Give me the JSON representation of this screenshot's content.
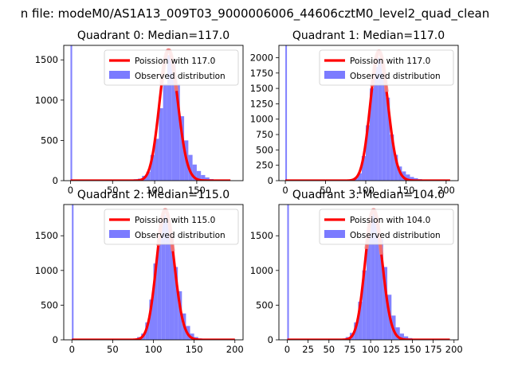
{
  "figure": {
    "suptitle": "n file: modeM0/AS1A13_009T03_9000006006_44606cztM0_level2_quad_clean"
  },
  "colors": {
    "hist": "#7b7bff",
    "poisson": "#ff0000",
    "poisson_peak": "#f08080",
    "axis": "#000000",
    "background": "#ffffff"
  },
  "chart_data": [
    {
      "type": "bar",
      "title": "Quadrant 0: Median=117.0",
      "xlim": [
        -8,
        205
      ],
      "ylim": [
        0,
        1680
      ],
      "xticks": [
        0,
        50,
        100,
        150
      ],
      "yticks": [
        0,
        500,
        1000,
        1500
      ],
      "bin_width": 5,
      "legend": {
        "placement": "top-right",
        "entries": [
          "Poission with 117.0",
          "Observed distribution"
        ]
      },
      "histogram": {
        "name": "Observed distribution",
        "bins": [
          {
            "x0": 0,
            "x1": 2,
            "count": 1680
          },
          {
            "x0": 60,
            "x1": 65,
            "count": 8
          },
          {
            "x0": 65,
            "x1": 70,
            "count": 10
          },
          {
            "x0": 70,
            "x1": 75,
            "count": 8
          },
          {
            "x0": 75,
            "x1": 80,
            "count": 18
          },
          {
            "x0": 80,
            "x1": 85,
            "count": 25
          },
          {
            "x0": 85,
            "x1": 90,
            "count": 60
          },
          {
            "x0": 90,
            "x1": 95,
            "count": 110
          },
          {
            "x0": 95,
            "x1": 100,
            "count": 320
          },
          {
            "x0": 100,
            "x1": 105,
            "count": 520
          },
          {
            "x0": 105,
            "x1": 110,
            "count": 900
          },
          {
            "x0": 110,
            "x1": 115,
            "count": 1200
          },
          {
            "x0": 115,
            "x1": 120,
            "count": 1560
          },
          {
            "x0": 120,
            "x1": 125,
            "count": 1480
          },
          {
            "x0": 125,
            "x1": 130,
            "count": 1200
          },
          {
            "x0": 130,
            "x1": 135,
            "count": 800
          },
          {
            "x0": 135,
            "x1": 140,
            "count": 500
          },
          {
            "x0": 140,
            "x1": 145,
            "count": 320
          },
          {
            "x0": 145,
            "x1": 150,
            "count": 200
          },
          {
            "x0": 150,
            "x1": 155,
            "count": 120
          },
          {
            "x0": 155,
            "x1": 160,
            "count": 70
          },
          {
            "x0": 160,
            "x1": 165,
            "count": 40
          },
          {
            "x0": 165,
            "x1": 170,
            "count": 20
          },
          {
            "x0": 170,
            "x1": 175,
            "count": 10
          },
          {
            "x0": 175,
            "x1": 180,
            "count": 5
          },
          {
            "x0": 180,
            "x1": 185,
            "count": 5
          },
          {
            "x0": 185,
            "x1": 190,
            "count": 5
          }
        ]
      },
      "poisson": {
        "name": "Poission with 117.0",
        "mean": 117.0,
        "peak": 1620,
        "x_range": [
          0,
          190
        ]
      }
    },
    {
      "type": "bar",
      "title": "Quadrant 1: Median=117.0",
      "xlim": [
        -8,
        215
      ],
      "ylim": [
        0,
        2200
      ],
      "xticks": [
        0,
        50,
        100,
        150,
        200
      ],
      "yticks": [
        0,
        250,
        500,
        750,
        1000,
        1250,
        1500,
        1750,
        2000
      ],
      "bin_width": 5,
      "legend": {
        "placement": "top-right",
        "entries": [
          "Poission with 117.0",
          "Observed distribution"
        ]
      },
      "histogram": {
        "name": "Observed distribution",
        "bins": [
          {
            "x0": 0,
            "x1": 2,
            "count": 2200
          },
          {
            "x0": 60,
            "x1": 65,
            "count": 5
          },
          {
            "x0": 65,
            "x1": 70,
            "count": 8
          },
          {
            "x0": 70,
            "x1": 75,
            "count": 8
          },
          {
            "x0": 75,
            "x1": 80,
            "count": 15
          },
          {
            "x0": 80,
            "x1": 85,
            "count": 25
          },
          {
            "x0": 85,
            "x1": 90,
            "count": 50
          },
          {
            "x0": 90,
            "x1": 95,
            "count": 120
          },
          {
            "x0": 95,
            "x1": 100,
            "count": 400
          },
          {
            "x0": 100,
            "x1": 105,
            "count": 900
          },
          {
            "x0": 105,
            "x1": 110,
            "count": 1500
          },
          {
            "x0": 110,
            "x1": 115,
            "count": 1850
          },
          {
            "x0": 115,
            "x1": 120,
            "count": 2000
          },
          {
            "x0": 120,
            "x1": 125,
            "count": 1750
          },
          {
            "x0": 125,
            "x1": 130,
            "count": 1350
          },
          {
            "x0": 130,
            "x1": 135,
            "count": 750
          },
          {
            "x0": 135,
            "x1": 140,
            "count": 420
          },
          {
            "x0": 140,
            "x1": 145,
            "count": 230
          },
          {
            "x0": 145,
            "x1": 150,
            "count": 150
          },
          {
            "x0": 150,
            "x1": 155,
            "count": 100
          },
          {
            "x0": 155,
            "x1": 160,
            "count": 60
          },
          {
            "x0": 160,
            "x1": 165,
            "count": 40
          },
          {
            "x0": 165,
            "x1": 170,
            "count": 25
          },
          {
            "x0": 170,
            "x1": 175,
            "count": 15
          },
          {
            "x0": 175,
            "x1": 180,
            "count": 10
          },
          {
            "x0": 180,
            "x1": 185,
            "count": 5
          },
          {
            "x0": 185,
            "x1": 190,
            "count": 5
          }
        ]
      },
      "poisson": {
        "name": "Poission with 117.0",
        "mean": 117.0,
        "peak": 2100,
        "x_range": [
          0,
          205
        ]
      }
    },
    {
      "type": "bar",
      "title": "Quadrant 2: Median=115.0",
      "xlim": [
        -10,
        210
      ],
      "ylim": [
        0,
        1950
      ],
      "xticks": [
        0,
        50,
        100,
        150,
        200
      ],
      "yticks": [
        0,
        500,
        1000,
        1500
      ],
      "bin_width": 5,
      "legend": {
        "placement": "top-right",
        "entries": [
          "Poission with 115.0",
          "Observed distribution"
        ]
      },
      "histogram": {
        "name": "Observed distribution",
        "bins": [
          {
            "x0": 0,
            "x1": 2,
            "count": 1950
          },
          {
            "x0": 65,
            "x1": 70,
            "count": 5
          },
          {
            "x0": 70,
            "x1": 75,
            "count": 8
          },
          {
            "x0": 75,
            "x1": 80,
            "count": 15
          },
          {
            "x0": 80,
            "x1": 85,
            "count": 40
          },
          {
            "x0": 85,
            "x1": 90,
            "count": 90
          },
          {
            "x0": 90,
            "x1": 95,
            "count": 250
          },
          {
            "x0": 95,
            "x1": 100,
            "count": 580
          },
          {
            "x0": 100,
            "x1": 105,
            "count": 1100
          },
          {
            "x0": 105,
            "x1": 110,
            "count": 1500
          },
          {
            "x0": 110,
            "x1": 115,
            "count": 1800
          },
          {
            "x0": 115,
            "x1": 120,
            "count": 1750
          },
          {
            "x0": 120,
            "x1": 125,
            "count": 1500
          },
          {
            "x0": 125,
            "x1": 130,
            "count": 1050
          },
          {
            "x0": 130,
            "x1": 135,
            "count": 700
          },
          {
            "x0": 135,
            "x1": 140,
            "count": 380
          },
          {
            "x0": 140,
            "x1": 145,
            "count": 200
          },
          {
            "x0": 145,
            "x1": 150,
            "count": 90
          },
          {
            "x0": 150,
            "x1": 155,
            "count": 40
          },
          {
            "x0": 155,
            "x1": 160,
            "count": 20
          },
          {
            "x0": 160,
            "x1": 165,
            "count": 8
          },
          {
            "x0": 165,
            "x1": 170,
            "count": 5
          }
        ]
      },
      "poisson": {
        "name": "Poission with 115.0",
        "mean": 115.0,
        "peak": 1870,
        "x_range": [
          0,
          200
        ]
      }
    },
    {
      "type": "bar",
      "title": "Quadrant 3: Median=104.0",
      "xlim": [
        -10,
        205
      ],
      "ylim": [
        0,
        1950
      ],
      "xticks": [
        0,
        25,
        50,
        75,
        100,
        125,
        150,
        175,
        200
      ],
      "yticks": [
        0,
        500,
        1000,
        1500
      ],
      "bin_width": 5,
      "legend": {
        "placement": "top-right",
        "entries": [
          "Poission with 104.0",
          "Observed distribution"
        ]
      },
      "histogram": {
        "name": "Observed distribution",
        "bins": [
          {
            "x0": 0,
            "x1": 2,
            "count": 1950
          },
          {
            "x0": 55,
            "x1": 60,
            "count": 5
          },
          {
            "x0": 60,
            "x1": 65,
            "count": 8
          },
          {
            "x0": 65,
            "x1": 70,
            "count": 15
          },
          {
            "x0": 70,
            "x1": 75,
            "count": 40
          },
          {
            "x0": 75,
            "x1": 80,
            "count": 100
          },
          {
            "x0": 80,
            "x1": 85,
            "count": 250
          },
          {
            "x0": 85,
            "x1": 90,
            "count": 550
          },
          {
            "x0": 90,
            "x1": 95,
            "count": 1000
          },
          {
            "x0": 95,
            "x1": 100,
            "count": 1500
          },
          {
            "x0": 100,
            "x1": 105,
            "count": 1830
          },
          {
            "x0": 105,
            "x1": 110,
            "count": 1700
          },
          {
            "x0": 110,
            "x1": 115,
            "count": 1450
          },
          {
            "x0": 115,
            "x1": 120,
            "count": 1050
          },
          {
            "x0": 120,
            "x1": 125,
            "count": 650
          },
          {
            "x0": 125,
            "x1": 130,
            "count": 350
          },
          {
            "x0": 130,
            "x1": 135,
            "count": 180
          },
          {
            "x0": 135,
            "x1": 140,
            "count": 90
          },
          {
            "x0": 140,
            "x1": 145,
            "count": 50
          },
          {
            "x0": 145,
            "x1": 150,
            "count": 25
          },
          {
            "x0": 150,
            "x1": 155,
            "count": 12
          },
          {
            "x0": 155,
            "x1": 160,
            "count": 6
          }
        ]
      },
      "poisson": {
        "name": "Poission with 104.0",
        "mean": 104.0,
        "peak": 1870,
        "x_range": [
          0,
          195
        ]
      }
    }
  ]
}
